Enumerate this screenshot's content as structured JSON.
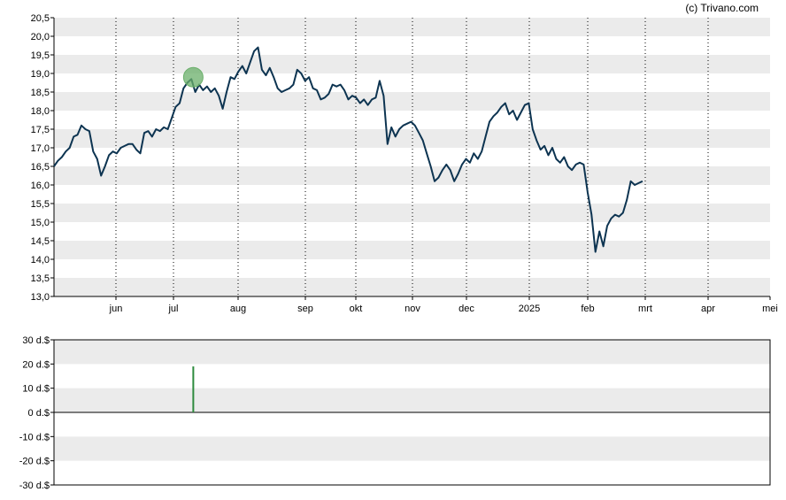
{
  "credit": "(c) Trivano.com",
  "colors": {
    "band": "#ebebeb",
    "line": "#0d3451",
    "marker_fill": "#6aaf6a",
    "dividend_bar": "#2e8b3e",
    "axis": "#000000",
    "grid": "#000000"
  },
  "chart_data": [
    {
      "type": "line",
      "title": "",
      "xlabel": "",
      "ylabel": "",
      "ylim": [
        13.0,
        20.5
      ],
      "yticks": [
        "13,0",
        "13,5",
        "14,0",
        "14,5",
        "15,0",
        "15,5",
        "16,0",
        "16,5",
        "17,0",
        "17,5",
        "18,0",
        "18,5",
        "19,0",
        "19,5",
        "20,0",
        "20,5"
      ],
      "xticks": [
        "jun",
        "jul",
        "aug",
        "sep",
        "okt",
        "nov",
        "dec",
        "2025",
        "feb",
        "mrt",
        "apr",
        "mei"
      ],
      "x_range": [
        "2024-05-07",
        "2025-05-07"
      ],
      "grid": "horizontal bands; dotted vertical lines at month starts",
      "marker": {
        "date": "2024-07-17",
        "value": 18.9
      },
      "series": [
        {
          "points": [
            [
              "2024-05-07",
              16.5
            ],
            [
              "2024-05-09",
              16.65
            ],
            [
              "2024-05-11",
              16.75
            ],
            [
              "2024-05-13",
              16.9
            ],
            [
              "2024-05-15",
              17.0
            ],
            [
              "2024-05-17",
              17.3
            ],
            [
              "2024-05-19",
              17.35
            ],
            [
              "2024-05-21",
              17.6
            ],
            [
              "2024-05-23",
              17.5
            ],
            [
              "2024-05-25",
              17.45
            ],
            [
              "2024-05-27",
              16.9
            ],
            [
              "2024-05-29",
              16.7
            ],
            [
              "2024-05-31",
              16.25
            ],
            [
              "2024-06-02",
              16.5
            ],
            [
              "2024-06-04",
              16.8
            ],
            [
              "2024-06-06",
              16.9
            ],
            [
              "2024-06-08",
              16.85
            ],
            [
              "2024-06-10",
              17.0
            ],
            [
              "2024-06-12",
              17.05
            ],
            [
              "2024-06-14",
              17.1
            ],
            [
              "2024-06-16",
              17.1
            ],
            [
              "2024-06-18",
              16.95
            ],
            [
              "2024-06-20",
              16.85
            ],
            [
              "2024-06-22",
              17.4
            ],
            [
              "2024-06-24",
              17.45
            ],
            [
              "2024-06-26",
              17.3
            ],
            [
              "2024-06-28",
              17.5
            ],
            [
              "2024-06-30",
              17.45
            ],
            [
              "2024-07-02",
              17.55
            ],
            [
              "2024-07-04",
              17.5
            ],
            [
              "2024-07-06",
              17.8
            ],
            [
              "2024-07-08",
              18.1
            ],
            [
              "2024-07-10",
              18.2
            ],
            [
              "2024-07-12",
              18.6
            ],
            [
              "2024-07-14",
              18.75
            ],
            [
              "2024-07-16",
              18.85
            ],
            [
              "2024-07-18",
              18.5
            ],
            [
              "2024-07-20",
              18.7
            ],
            [
              "2024-07-22",
              18.55
            ],
            [
              "2024-07-24",
              18.65
            ],
            [
              "2024-07-26",
              18.5
            ],
            [
              "2024-07-28",
              18.6
            ],
            [
              "2024-07-30",
              18.4
            ],
            [
              "2024-08-01",
              18.05
            ],
            [
              "2024-08-03",
              18.5
            ],
            [
              "2024-08-05",
              18.9
            ],
            [
              "2024-08-07",
              18.85
            ],
            [
              "2024-08-09",
              19.05
            ],
            [
              "2024-08-11",
              19.2
            ],
            [
              "2024-08-13",
              19.0
            ],
            [
              "2024-08-15",
              19.3
            ],
            [
              "2024-08-17",
              19.6
            ],
            [
              "2024-08-19",
              19.7
            ],
            [
              "2024-08-21",
              19.1
            ],
            [
              "2024-08-23",
              18.95
            ],
            [
              "2024-08-25",
              19.15
            ],
            [
              "2024-08-27",
              18.9
            ],
            [
              "2024-08-29",
              18.6
            ],
            [
              "2024-08-31",
              18.5
            ],
            [
              "2024-09-02",
              18.55
            ],
            [
              "2024-09-04",
              18.6
            ],
            [
              "2024-09-06",
              18.7
            ],
            [
              "2024-09-08",
              19.1
            ],
            [
              "2024-09-10",
              19.0
            ],
            [
              "2024-09-12",
              18.8
            ],
            [
              "2024-09-14",
              18.9
            ],
            [
              "2024-09-16",
              18.6
            ],
            [
              "2024-09-18",
              18.55
            ],
            [
              "2024-09-20",
              18.3
            ],
            [
              "2024-09-22",
              18.35
            ],
            [
              "2024-09-24",
              18.45
            ],
            [
              "2024-09-26",
              18.7
            ],
            [
              "2024-09-28",
              18.65
            ],
            [
              "2024-09-30",
              18.7
            ],
            [
              "2024-10-02",
              18.55
            ],
            [
              "2024-10-04",
              18.3
            ],
            [
              "2024-10-06",
              18.4
            ],
            [
              "2024-10-08",
              18.35
            ],
            [
              "2024-10-10",
              18.2
            ],
            [
              "2024-10-12",
              18.3
            ],
            [
              "2024-10-14",
              18.15
            ],
            [
              "2024-10-16",
              18.3
            ],
            [
              "2024-10-18",
              18.35
            ],
            [
              "2024-10-20",
              18.8
            ],
            [
              "2024-10-22",
              18.4
            ],
            [
              "2024-10-24",
              17.1
            ],
            [
              "2024-10-26",
              17.55
            ],
            [
              "2024-10-28",
              17.3
            ],
            [
              "2024-10-30",
              17.5
            ],
            [
              "2024-11-01",
              17.6
            ],
            [
              "2024-11-03",
              17.65
            ],
            [
              "2024-11-05",
              17.7
            ],
            [
              "2024-11-07",
              17.6
            ],
            [
              "2024-11-09",
              17.4
            ],
            [
              "2024-11-11",
              17.2
            ],
            [
              "2024-11-13",
              16.85
            ],
            [
              "2024-11-15",
              16.5
            ],
            [
              "2024-11-17",
              16.1
            ],
            [
              "2024-11-19",
              16.2
            ],
            [
              "2024-11-21",
              16.4
            ],
            [
              "2024-11-23",
              16.55
            ],
            [
              "2024-11-25",
              16.4
            ],
            [
              "2024-11-27",
              16.1
            ],
            [
              "2024-11-29",
              16.3
            ],
            [
              "2024-12-01",
              16.55
            ],
            [
              "2024-12-03",
              16.7
            ],
            [
              "2024-12-05",
              16.6
            ],
            [
              "2024-12-07",
              16.85
            ],
            [
              "2024-12-09",
              16.7
            ],
            [
              "2024-12-11",
              16.9
            ],
            [
              "2024-12-13",
              17.3
            ],
            [
              "2024-12-15",
              17.7
            ],
            [
              "2024-12-17",
              17.85
            ],
            [
              "2024-12-19",
              17.95
            ],
            [
              "2024-12-21",
              18.1
            ],
            [
              "2024-12-23",
              18.2
            ],
            [
              "2024-12-25",
              17.9
            ],
            [
              "2024-12-27",
              18.0
            ],
            [
              "2024-12-29",
              17.75
            ],
            [
              "2024-12-31",
              17.95
            ],
            [
              "2025-01-02",
              18.15
            ],
            [
              "2025-01-04",
              18.2
            ],
            [
              "2025-01-06",
              17.5
            ],
            [
              "2025-01-08",
              17.2
            ],
            [
              "2025-01-10",
              16.95
            ],
            [
              "2025-01-12",
              17.05
            ],
            [
              "2025-01-14",
              16.8
            ],
            [
              "2025-01-16",
              17.0
            ],
            [
              "2025-01-18",
              16.7
            ],
            [
              "2025-01-20",
              16.6
            ],
            [
              "2025-01-22",
              16.75
            ],
            [
              "2025-01-24",
              16.5
            ],
            [
              "2025-01-26",
              16.4
            ],
            [
              "2025-01-28",
              16.55
            ],
            [
              "2025-01-30",
              16.6
            ],
            [
              "2025-02-01",
              16.55
            ],
            [
              "2025-02-03",
              15.8
            ],
            [
              "2025-02-05",
              15.2
            ],
            [
              "2025-02-07",
              14.2
            ],
            [
              "2025-02-09",
              14.75
            ],
            [
              "2025-02-11",
              14.35
            ],
            [
              "2025-02-13",
              14.9
            ],
            [
              "2025-02-15",
              15.1
            ],
            [
              "2025-02-17",
              15.2
            ],
            [
              "2025-02-19",
              15.15
            ],
            [
              "2025-02-21",
              15.25
            ],
            [
              "2025-02-23",
              15.6
            ],
            [
              "2025-02-25",
              16.1
            ],
            [
              "2025-02-27",
              16.0
            ],
            [
              "2025-03-01",
              16.05
            ],
            [
              "2025-03-03",
              16.1
            ]
          ]
        }
      ]
    },
    {
      "type": "bar",
      "title": "",
      "xlabel": "",
      "ylabel": "",
      "ylim": [
        -30,
        30
      ],
      "yticks": [
        "30 d.$",
        "20 d.$",
        "10 d.$",
        "0 d.$",
        "-10 d.$",
        "-20 d.$",
        "-30 d.$"
      ],
      "values": [
        {
          "date": "2024-07-17",
          "value": 19
        }
      ]
    }
  ]
}
